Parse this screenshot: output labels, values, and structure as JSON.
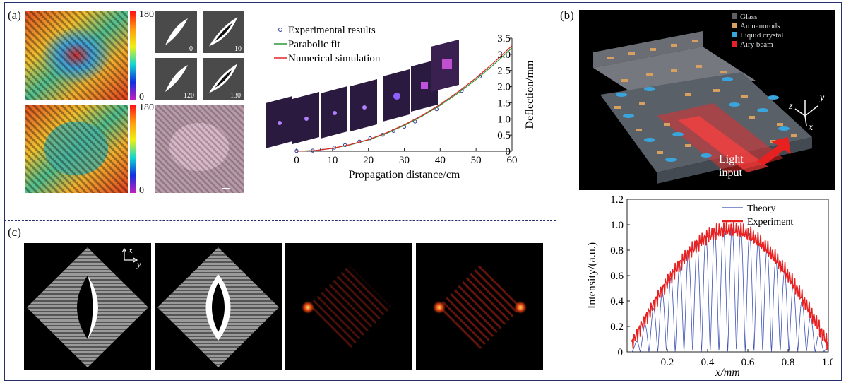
{
  "panels": {
    "a": "(a)",
    "b": "(b)",
    "c": "(c)"
  },
  "colorbar": {
    "top_max": "180",
    "top_min": "0",
    "bottom_max": "180",
    "bottom_min": "0"
  },
  "thumbnails": [
    "0",
    "10",
    "120",
    "130"
  ],
  "schematic": {
    "legend": [
      "Glass",
      "Au nanorods",
      "Liquid crystal",
      "Airy beam"
    ],
    "legend_colors": [
      "#5f6064",
      "#d9a060",
      "#3aa4dc",
      "#e8202a"
    ],
    "axes": {
      "z": "z",
      "y": "y",
      "x": "x"
    },
    "light_input": [
      "Light",
      "input"
    ]
  },
  "axes_c": {
    "x": "x",
    "y": "y"
  },
  "chart_data": [
    {
      "type": "scatter",
      "xlabel": "Propagation distance/cm",
      "ylabel": "Deflection/mm",
      "xlim": [
        0,
        60
      ],
      "ylim": [
        0,
        3.5
      ],
      "xticks": [
        "0",
        "10",
        "20",
        "30",
        "40",
        "50",
        "60"
      ],
      "yticks": [
        "0",
        "0.5",
        "1.0",
        "1.5",
        "2.0",
        "2.5",
        "3.0",
        "3.5"
      ],
      "legend": "top-left",
      "series": [
        {
          "name": "Experimental results",
          "kind": "markers",
          "color": "#2a3a9a",
          "x": [
            0,
            4.5,
            7,
            10.5,
            13.5,
            17.5,
            20.5,
            24,
            27,
            30,
            33,
            39,
            46,
            51
          ],
          "y": [
            0.01,
            0.02,
            0.05,
            0.11,
            0.19,
            0.3,
            0.4,
            0.51,
            0.63,
            0.76,
            0.92,
            1.3,
            1.87,
            2.31
          ]
        },
        {
          "name": "Parabolic fit",
          "kind": "line",
          "color": "#2a9a3a",
          "x": [
            0,
            5,
            10,
            15,
            20,
            25,
            30,
            35,
            40,
            45,
            50,
            55,
            60
          ],
          "y": [
            0,
            0.02,
            0.09,
            0.2,
            0.35,
            0.55,
            0.8,
            1.09,
            1.42,
            1.8,
            2.22,
            2.69,
            3.2
          ]
        },
        {
          "name": "Numerical simulation",
          "kind": "line",
          "color": "#e02828",
          "x": [
            0,
            5,
            10,
            15,
            20,
            25,
            30,
            35,
            40,
            45,
            50,
            55,
            60
          ],
          "y": [
            0,
            0.02,
            0.09,
            0.21,
            0.36,
            0.57,
            0.82,
            1.11,
            1.45,
            1.84,
            2.27,
            2.75,
            3.27
          ]
        }
      ]
    },
    {
      "type": "line",
      "xlabel": "x/mm",
      "ylabel": "Intensity/(a.u.)",
      "xlim": [
        0,
        1.0
      ],
      "ylim": [
        0,
        1.2
      ],
      "xticks": [
        "0",
        "0.2",
        "0.4",
        "0.6",
        "0.8",
        "1.0"
      ],
      "yticks": [
        "0.2",
        "0.4",
        "0.6",
        "0.8",
        "1.0",
        "1.2"
      ],
      "legend": "top-right",
      "series": [
        {
          "name": "Theory",
          "color": "#3c50b4"
        },
        {
          "name": "Experiment",
          "color": "#e82020"
        }
      ]
    }
  ]
}
